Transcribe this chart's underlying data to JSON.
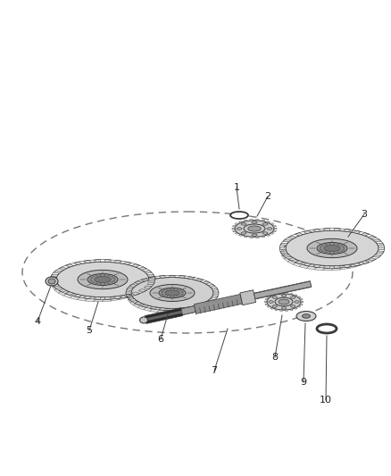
{
  "background_color": "#ffffff",
  "edge_color": "#3a3a3a",
  "gear_face": "#d8d8d8",
  "gear_inner": "#bbbbbb",
  "gear_hub": "#a0a0a0",
  "shaft_dark": "#1a1a1a",
  "shaft_mid": "#888888",
  "shaft_light": "#bbbbbb",
  "dashed_color": "#777777",
  "label_color": "#222222",
  "figsize": [
    4.38,
    5.33
  ],
  "dpi": 100
}
